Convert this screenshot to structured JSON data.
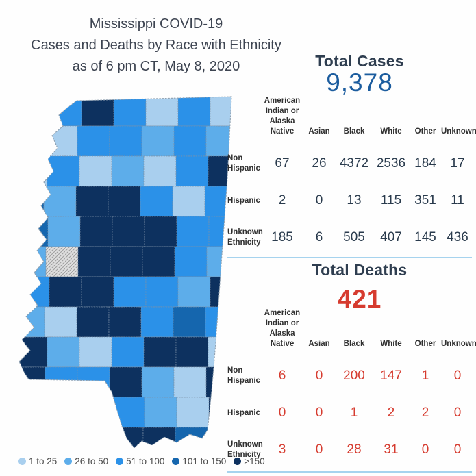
{
  "title": {
    "line1": "Mississippi COVID-19",
    "line2": "Cases and Deaths by Race with Ethnicity",
    "line3": "as of 6 pm CT, May 8, 2020"
  },
  "columns": [
    "American\nIndian or\nAlaska Native",
    "Asian",
    "Black",
    "White",
    "Other",
    "Unknown"
  ],
  "cases": {
    "label": "Total Cases",
    "total": "9,378",
    "rows": [
      {
        "label": "Non\nHispanic",
        "values": [
          67,
          26,
          4372,
          2536,
          184,
          17
        ]
      },
      {
        "label": "Hispanic",
        "values": [
          2,
          0,
          13,
          115,
          351,
          11
        ]
      },
      {
        "label": "Unknown\nEthnicity",
        "values": [
          185,
          6,
          505,
          407,
          145,
          436
        ]
      }
    ]
  },
  "deaths": {
    "label": "Total Deaths",
    "total": "421",
    "rows": [
      {
        "label": "Non\nHispanic",
        "values": [
          6,
          0,
          200,
          147,
          1,
          0
        ]
      },
      {
        "label": "Hispanic",
        "values": [
          0,
          0,
          1,
          2,
          2,
          0
        ]
      },
      {
        "label": "Unknown\nEthnicity",
        "values": [
          3,
          0,
          28,
          31,
          0,
          0
        ]
      }
    ]
  },
  "map": {
    "description": "Mississippi county choropleth of COVID-19 cases",
    "no_data_color": "#d8d8d8",
    "legend": [
      {
        "label": "1 to 25",
        "color": "#a9cfee"
      },
      {
        "label": "26 to 50",
        "color": "#5dadea"
      },
      {
        "label": "51 to 100",
        "color": "#2b91e8"
      },
      {
        "label": "101 to 150",
        "color": "#1566ae"
      },
      {
        "label": ">150",
        "color": "#0d315f"
      }
    ],
    "grid": [
      [
        2,
        3,
        5,
        3,
        1,
        3,
        1
      ],
      [
        2,
        1,
        3,
        3,
        2,
        3,
        2
      ],
      [
        1,
        3,
        1,
        2,
        1,
        3,
        5
      ],
      [
        4,
        2,
        5,
        5,
        3,
        1,
        3
      ],
      [
        4,
        2,
        5,
        5,
        5,
        3,
        3
      ],
      [
        2,
        0,
        5,
        5,
        5,
        3,
        2
      ],
      [
        3,
        5,
        5,
        3,
        3,
        2,
        5
      ],
      [
        2,
        1,
        5,
        5,
        3,
        4,
        3
      ],
      [
        5,
        2,
        1,
        3,
        5,
        5,
        1
      ],
      [
        5,
        3,
        3,
        5,
        2,
        1,
        5
      ],
      [
        5,
        3,
        2,
        3,
        2,
        1,
        5
      ],
      [
        5,
        3,
        3,
        5,
        5,
        4,
        5
      ]
    ]
  },
  "colors": {
    "cases_accent": "#1b5c9e",
    "deaths_accent": "#d63b2f",
    "section_header": "#2f3e50",
    "divider": "#a6d3ee"
  },
  "chart_data": [
    {
      "type": "table",
      "title": "Total Cases",
      "total": 9378,
      "columns": [
        "American Indian or Alaska Native",
        "Asian",
        "Black",
        "White",
        "Other",
        "Unknown"
      ],
      "row_labels": [
        "Non Hispanic",
        "Hispanic",
        "Unknown Ethnicity"
      ],
      "values": [
        [
          67,
          26,
          4372,
          2536,
          184,
          17
        ],
        [
          2,
          0,
          13,
          115,
          351,
          11
        ],
        [
          185,
          6,
          505,
          407,
          145,
          436
        ]
      ]
    },
    {
      "type": "table",
      "title": "Total Deaths",
      "total": 421,
      "columns": [
        "American Indian or Alaska Native",
        "Asian",
        "Black",
        "White",
        "Other",
        "Unknown"
      ],
      "row_labels": [
        "Non Hispanic",
        "Hispanic",
        "Unknown Ethnicity"
      ],
      "values": [
        [
          6,
          0,
          200,
          147,
          1,
          0
        ],
        [
          0,
          0,
          1,
          2,
          2,
          0
        ],
        [
          3,
          0,
          28,
          31,
          0,
          0
        ]
      ]
    },
    {
      "type": "heatmap",
      "subtype": "choropleth-map",
      "title": "Mississippi counties shaded by COVID-19 case count",
      "legend_bins": [
        "1 to 25",
        "26 to 50",
        "51 to 100",
        "101 to 150",
        ">150"
      ],
      "legend_position": "bottom-left"
    }
  ]
}
